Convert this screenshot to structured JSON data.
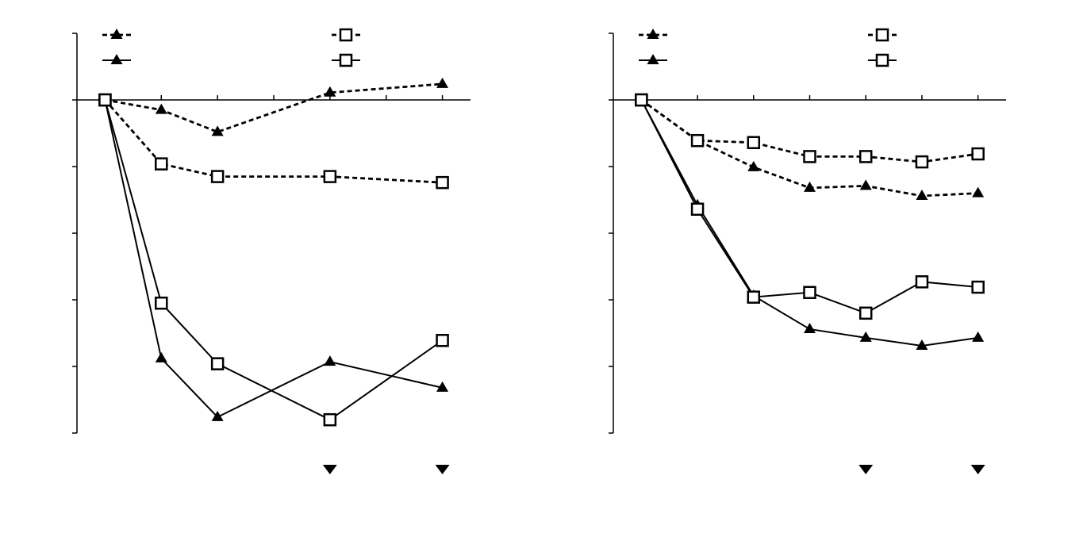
{
  "chart_data": [
    {
      "type": "line",
      "xlim": [
        -0.5,
        6.5
      ],
      "ylim": [
        -5,
        1
      ],
      "xticks": [
        1,
        2,
        3,
        4,
        5,
        6
      ],
      "yticks": [
        -5,
        -4,
        -3,
        -2,
        -1,
        0,
        1
      ],
      "x": [
        0,
        1,
        2,
        4,
        6
      ],
      "series": [
        {
          "marker": "triangle",
          "dashed": true,
          "color": "#000000",
          "values": [
            0,
            -0.15,
            -0.48,
            0.11,
            0.24
          ]
        },
        {
          "marker": "square",
          "dashed": true,
          "color": "#000000",
          "values": [
            0,
            -0.96,
            -1.15,
            -1.15,
            -1.24
          ]
        },
        {
          "marker": "triangle",
          "dashed": false,
          "color": "#000000",
          "values": [
            0,
            -3.88,
            -4.76,
            -3.93,
            -4.32
          ]
        },
        {
          "marker": "square",
          "dashed": false,
          "color": "#000000",
          "values": [
            0,
            -3.05,
            -3.96,
            -4.8,
            -3.61
          ]
        }
      ],
      "significance_x": [
        4,
        6
      ]
    },
    {
      "type": "line",
      "xlim": [
        -0.5,
        6.5
      ],
      "ylim": [
        -5,
        1
      ],
      "xticks": [
        1,
        2,
        3,
        4,
        5,
        6
      ],
      "yticks": [
        -5,
        -4,
        -3,
        -2,
        -1,
        0,
        1
      ],
      "x": [
        0,
        1,
        2,
        3,
        4,
        5,
        6
      ],
      "series": [
        {
          "marker": "triangle",
          "dashed": true,
          "color": "#000000",
          "values": [
            0,
            -0.61,
            -1.01,
            -1.32,
            -1.29,
            -1.44,
            -1.4
          ]
        },
        {
          "marker": "square",
          "dashed": true,
          "color": "#000000",
          "values": [
            0,
            -0.61,
            -0.64,
            -0.85,
            -0.85,
            -0.93,
            -0.81
          ]
        },
        {
          "marker": "triangle",
          "dashed": false,
          "color": "#000000",
          "values": [
            0,
            -1.58,
            -2.94,
            -3.44,
            -3.57,
            -3.69,
            -3.57
          ]
        },
        {
          "marker": "square",
          "dashed": false,
          "color": "#000000",
          "values": [
            0,
            -1.64,
            -2.96,
            -2.89,
            -3.2,
            -2.73,
            -2.81
          ]
        }
      ],
      "significance_x": [
        4,
        6
      ]
    }
  ]
}
